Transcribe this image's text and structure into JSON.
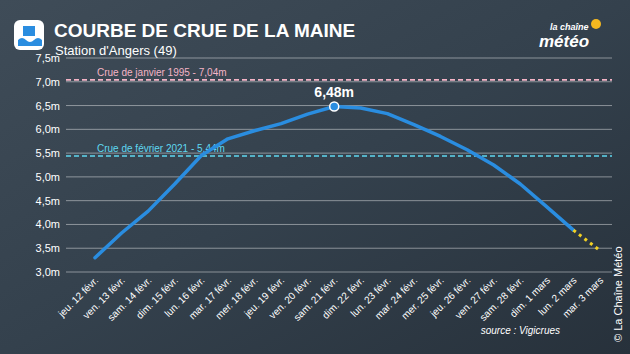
{
  "chart_data": {
    "type": "line",
    "title": "COURBE DE CRUE DE LA MAINE",
    "subtitle": "Station d'Angers (49)",
    "logo": [
      "la chaîne",
      "météo"
    ],
    "source": "source : Vigicrues",
    "copyright": "© La Chaîne Météo",
    "categories": [
      "jeu. 12 févr.",
      "ven. 13 févr.",
      "sam. 14 févr.",
      "dim. 15 févr.",
      "lun. 16 févr.",
      "mar. 17 févr.",
      "mer. 18 févr.",
      "jeu. 19 févr.",
      "ven. 20 févr.",
      "sam. 21 févr.",
      "dim. 22 févr.",
      "lun. 23 févr.",
      "mar. 24 févr.",
      "mer. 25 févr.",
      "jeu. 26 févr.",
      "ven. 27 févr.",
      "sam. 28 févr.",
      "dim. 1 mars",
      "lun. 2 mars",
      "mar. 3 mars"
    ],
    "series": [
      {
        "color": "#2a8de0",
        "line_style": "solid",
        "values": [
          3.3,
          3.82,
          4.28,
          4.85,
          5.45,
          5.8,
          5.97,
          6.12,
          6.32,
          6.48,
          6.45,
          6.33,
          6.1,
          5.85,
          5.57,
          5.25,
          4.85,
          4.37,
          3.88,
          null
        ]
      },
      {
        "color": "#f2d024",
        "line_style": "dotted",
        "values": [
          null,
          null,
          null,
          null,
          null,
          null,
          null,
          null,
          null,
          null,
          null,
          null,
          null,
          null,
          null,
          null,
          null,
          null,
          3.88,
          3.45
        ]
      }
    ],
    "ylim": [
      3,
      7.5
    ],
    "yticks": [
      {
        "value": 3,
        "label": "3,0m"
      },
      {
        "value": 3.5,
        "label": "3,5m"
      },
      {
        "value": 4,
        "label": "4,0m"
      },
      {
        "value": 4.5,
        "label": "4,5m"
      },
      {
        "value": 5,
        "label": "5,0m"
      },
      {
        "value": 5.5,
        "label": "5,5m"
      },
      {
        "value": 6,
        "label": "6,0m"
      },
      {
        "value": 6.5,
        "label": "6,5m"
      },
      {
        "value": 7,
        "label": "7,0m"
      },
      {
        "value": 7.5,
        "label": "7,5m"
      }
    ],
    "grid": true,
    "reference_lines": [
      {
        "value": 7.04,
        "label": "Crue de janvier 1995 - 7,04m",
        "color": "#f4b4c6"
      },
      {
        "value": 5.44,
        "label": "Crue de février 2021 - 5,44m",
        "color": "#5fd8f0"
      }
    ],
    "annotations": [
      {
        "category": "sam. 21 févr.",
        "value": 6.48,
        "label": "6,48m"
      }
    ]
  }
}
